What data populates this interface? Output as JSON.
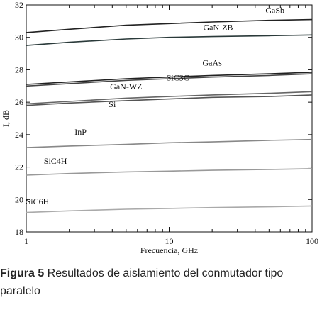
{
  "chart_data": {
    "type": "line",
    "xlabel": "Frecuencia, GHz",
    "ylabel": "I, dB",
    "xscale": "log",
    "xlim": [
      1,
      100
    ],
    "ylim": [
      18,
      32
    ],
    "xticks": [
      1,
      10,
      100
    ],
    "yticks": [
      18,
      20,
      22,
      24,
      26,
      28,
      30,
      32
    ],
    "grid": false,
    "series": [
      {
        "name": "GaSb",
        "color": "#222222",
        "x": [
          1,
          2,
          5,
          10,
          20,
          50,
          100
        ],
        "y": [
          30.3,
          30.5,
          30.75,
          30.85,
          30.95,
          31.05,
          31.1
        ]
      },
      {
        "name": "GaN-ZB",
        "color": "#2a3a3a",
        "x": [
          1,
          2,
          5,
          10,
          20,
          50,
          100
        ],
        "y": [
          29.5,
          29.7,
          29.9,
          30.0,
          30.05,
          30.1,
          30.15
        ]
      },
      {
        "name": "GaAs",
        "color": "#222222",
        "x": [
          1,
          2,
          5,
          10,
          20,
          50,
          100
        ],
        "y": [
          27.1,
          27.25,
          27.45,
          27.55,
          27.65,
          27.75,
          27.85
        ]
      },
      {
        "name": "SiC3C",
        "color": "#444444",
        "x": [
          1,
          2,
          5,
          10,
          20,
          50,
          100
        ],
        "y": [
          27.0,
          27.15,
          27.35,
          27.45,
          27.55,
          27.65,
          27.75
        ]
      },
      {
        "name": "GaN-WZ",
        "color": "#666666",
        "x": [
          1,
          2,
          5,
          10,
          20,
          50,
          100
        ],
        "y": [
          25.9,
          26.05,
          26.25,
          26.35,
          26.45,
          26.55,
          26.65
        ]
      },
      {
        "name": "Si",
        "color": "#555555",
        "x": [
          1,
          2,
          5,
          10,
          20,
          50,
          100
        ],
        "y": [
          25.8,
          25.95,
          26.1,
          26.2,
          26.3,
          26.35,
          26.45
        ]
      },
      {
        "name": "InP",
        "color": "#888888",
        "x": [
          1,
          2,
          5,
          10,
          20,
          50,
          100
        ],
        "y": [
          23.2,
          23.3,
          23.4,
          23.5,
          23.55,
          23.65,
          23.7
        ]
      },
      {
        "name": "SiC4H",
        "color": "#999999",
        "x": [
          1,
          2,
          5,
          10,
          20,
          50,
          100
        ],
        "y": [
          21.5,
          21.6,
          21.7,
          21.75,
          21.8,
          21.85,
          21.9
        ]
      },
      {
        "name": "SiC6H",
        "color": "#aaaaaa",
        "x": [
          1,
          2,
          5,
          10,
          20,
          50,
          100
        ],
        "y": [
          19.2,
          19.3,
          19.4,
          19.45,
          19.5,
          19.55,
          19.6
        ]
      }
    ],
    "labels": [
      {
        "text": "GaSb",
        "x": 55,
        "y": 31.5
      },
      {
        "text": "GaN-ZB",
        "x": 22,
        "y": 30.45
      },
      {
        "text": "GaAs",
        "x": 20,
        "y": 28.25
      },
      {
        "text": "SiC3C",
        "x": 11.5,
        "y": 27.35
      },
      {
        "text": "GaN-WZ",
        "x": 5,
        "y": 26.8
      },
      {
        "text": "Si",
        "x": 4,
        "y": 25.7
      },
      {
        "text": "InP",
        "x": 2.4,
        "y": 24.0
      },
      {
        "text": "SiC4H",
        "x": 1.6,
        "y": 22.2
      },
      {
        "text": "SiC6H",
        "x": 1.2,
        "y": 19.7
      }
    ]
  },
  "caption": {
    "figure_label": "Figura 5",
    "text": " Resultados de aislamiento del conmutador tipo paralelo"
  }
}
